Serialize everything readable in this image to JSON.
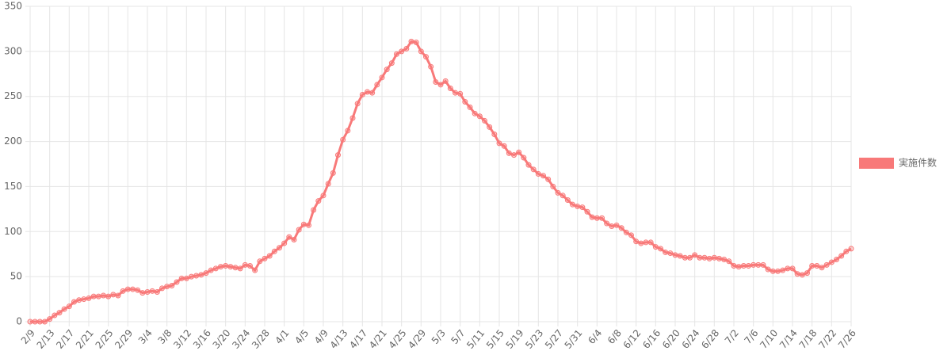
{
  "chart_data": {
    "type": "line",
    "categories": [
      "2/9",
      null,
      null,
      null,
      "2/13",
      null,
      null,
      null,
      "2/17",
      null,
      null,
      null,
      "2/21",
      null,
      null,
      null,
      "2/25",
      null,
      null,
      null,
      "2/29",
      null,
      null,
      null,
      "3/4",
      null,
      null,
      null,
      "3/8",
      null,
      null,
      null,
      "3/12",
      null,
      null,
      null,
      "3/16",
      null,
      null,
      null,
      "3/20",
      null,
      null,
      null,
      "3/24",
      null,
      null,
      null,
      "3/28",
      null,
      null,
      null,
      "4/1",
      null,
      null,
      null,
      "4/5",
      null,
      null,
      null,
      "4/9",
      null,
      null,
      null,
      "4/13",
      null,
      null,
      null,
      "4/17",
      null,
      null,
      null,
      "4/21",
      null,
      null,
      null,
      "4/25",
      null,
      null,
      null,
      "4/29",
      null,
      null,
      null,
      "5/3",
      null,
      null,
      null,
      "5/7",
      null,
      null,
      null,
      "5/11",
      null,
      null,
      null,
      "5/15",
      null,
      null,
      null,
      "5/19",
      null,
      null,
      null,
      "5/23",
      null,
      null,
      null,
      "5/27",
      null,
      null,
      null,
      "5/31",
      null,
      null,
      null,
      "6/4",
      null,
      null,
      null,
      "6/8",
      null,
      null,
      null,
      "6/12",
      null,
      null,
      null,
      "6/16",
      null,
      null,
      null,
      "6/20",
      null,
      null,
      null,
      "6/24",
      null,
      null,
      null,
      "6/28",
      null,
      null,
      null,
      "7/2",
      null,
      null,
      null,
      "7/6",
      null,
      null,
      null,
      "7/10",
      null,
      null,
      null,
      "7/14",
      null,
      null,
      null,
      "7/18",
      null,
      null,
      null,
      "7/22",
      null,
      null,
      null,
      "7/26"
    ],
    "series": [
      {
        "name": "実施件数",
        "color": "#f87979",
        "values": [
          0,
          0,
          0,
          0,
          3,
          7,
          10,
          14,
          17,
          22,
          24,
          25,
          26,
          28,
          28,
          29,
          28,
          30,
          29,
          34,
          36,
          36,
          35,
          32,
          33,
          34,
          33,
          37,
          39,
          40,
          44,
          48,
          48,
          50,
          51,
          52,
          54,
          57,
          59,
          61,
          62,
          61,
          60,
          59,
          63,
          62,
          57,
          67,
          70,
          73,
          78,
          82,
          87,
          94,
          91,
          102,
          108,
          107,
          124,
          134,
          140,
          153,
          165,
          185,
          202,
          212,
          226,
          242,
          252,
          255,
          254,
          263,
          271,
          280,
          287,
          297,
          300,
          303,
          311,
          310,
          300,
          294,
          283,
          266,
          263,
          267,
          259,
          254,
          253,
          244,
          238,
          231,
          228,
          223,
          216,
          208,
          198,
          195,
          187,
          185,
          188,
          182,
          174,
          169,
          164,
          162,
          158,
          150,
          143,
          140,
          135,
          130,
          128,
          127,
          122,
          116,
          115,
          115,
          109,
          106,
          107,
          104,
          99,
          96,
          89,
          87,
          88,
          88,
          83,
          81,
          77,
          76,
          74,
          73,
          71,
          71,
          74,
          71,
          71,
          70,
          71,
          70,
          69,
          67,
          62,
          61,
          62,
          62,
          63,
          63,
          63,
          58,
          56,
          56,
          57,
          59,
          59,
          53,
          52,
          54,
          62,
          62,
          60,
          63,
          66,
          69,
          73,
          78,
          81
        ]
      }
    ],
    "ylim": [
      0,
      350
    ],
    "yticks": [
      0,
      50,
      100,
      150,
      200,
      250,
      300,
      350
    ],
    "grid": true,
    "legend": "right"
  }
}
